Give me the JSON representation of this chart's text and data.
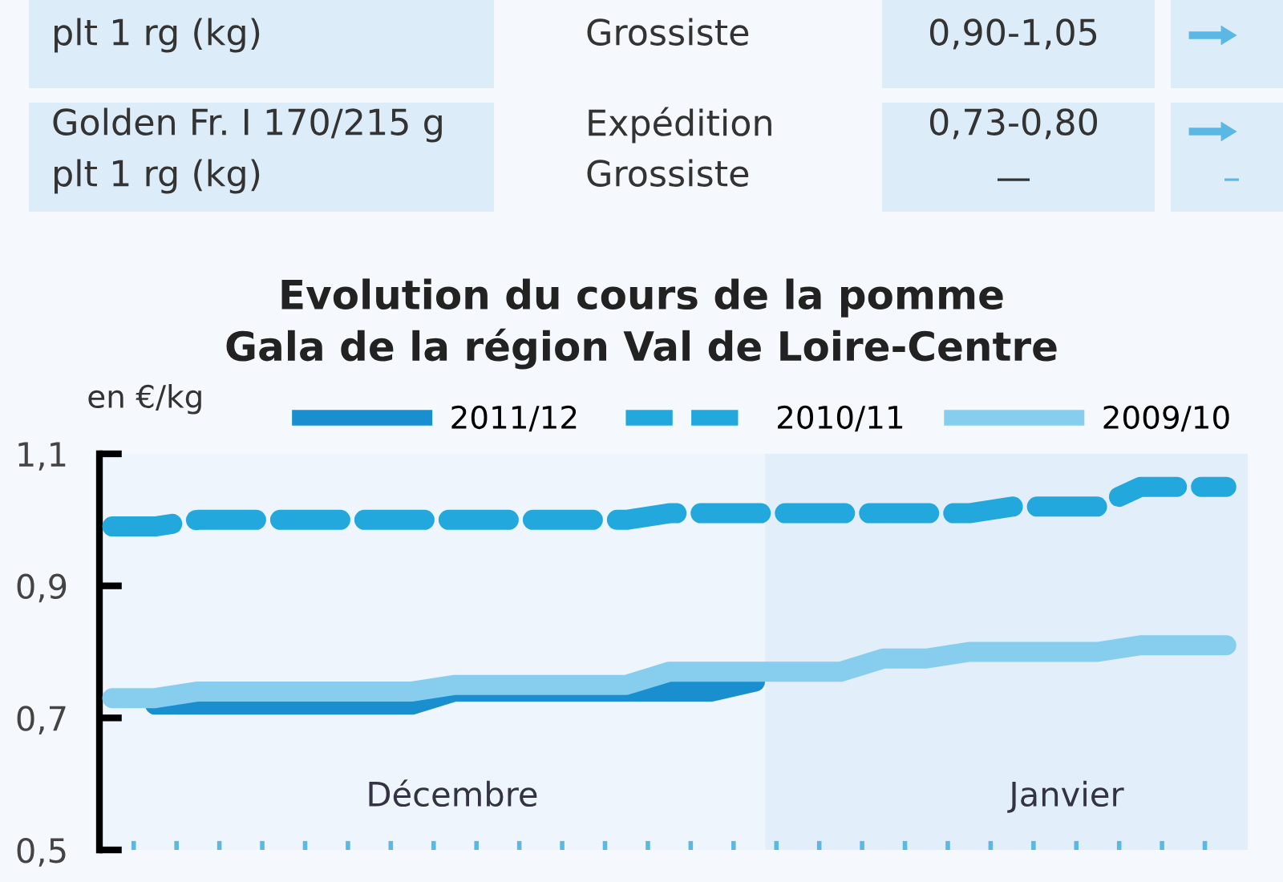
{
  "chart_data": {
    "type": "line",
    "title": "Evolution du cours de la pomme\nGala de la région Val de Loire-Centre",
    "ylabel": "en €/kg",
    "annotations": [
      "plt 1 rg (kg)",
      "Grossiste",
      "0,90-1,05",
      "Golden Fr. I 170/215 g",
      "plt 1 rg (kg)",
      "Expédition",
      "Grossiste",
      "0,73-0,80",
      "—",
      "–",
      "Décembre",
      "Janvier"
    ],
    "categories": [
      null,
      null,
      null,
      null,
      null,
      null,
      null,
      null,
      null,
      null,
      null,
      null,
      null,
      null,
      null,
      null,
      null,
      null,
      null,
      null,
      null,
      null,
      null,
      null,
      null,
      null,
      null
    ],
    "series": [
      {
        "name": "2011/12",
        "color": "#1a8fd0",
        "line_style": "solid",
        "values": [
          null,
          0.72,
          0.72,
          0.72,
          0.72,
          0.72,
          0.72,
          0.72,
          0.74,
          0.74,
          0.74,
          0.74,
          0.74,
          0.74,
          0.74,
          0.755,
          null,
          null,
          null,
          null,
          null,
          null,
          null,
          null,
          null,
          null,
          null
        ]
      },
      {
        "name": "2010/11",
        "color": "#22a8dc",
        "line_style": "dashed",
        "values": [
          0.99,
          0.99,
          1.0,
          1.0,
          1.0,
          1.0,
          1.0,
          1.0,
          1.0,
          1.0,
          1.0,
          1.0,
          1.0,
          1.01,
          1.01,
          1.01,
          1.01,
          1.01,
          1.01,
          1.01,
          1.01,
          1.02,
          1.02,
          1.02,
          1.05,
          1.05,
          1.05
        ]
      },
      {
        "name": "2009/10",
        "color": "#86cdee",
        "line_style": "solid",
        "values": [
          0.73,
          0.73,
          0.74,
          0.74,
          0.74,
          0.74,
          0.74,
          0.74,
          0.75,
          0.75,
          0.75,
          0.75,
          0.75,
          0.77,
          0.77,
          0.77,
          0.77,
          0.77,
          0.79,
          0.79,
          0.8,
          0.8,
          0.8,
          0.8,
          0.81,
          0.81,
          0.81
        ]
      }
    ],
    "ylim": [
      0.5,
      1.1
    ],
    "yticks": [
      {
        "value": 0.5,
        "label": "0,5"
      },
      {
        "value": 0.7,
        "label": "0,7"
      },
      {
        "value": 0.9,
        "label": "0,9"
      },
      {
        "value": 1.1,
        "label": "1,1"
      }
    ],
    "tick_labels": "y",
    "grid": false,
    "legend": "top"
  }
}
